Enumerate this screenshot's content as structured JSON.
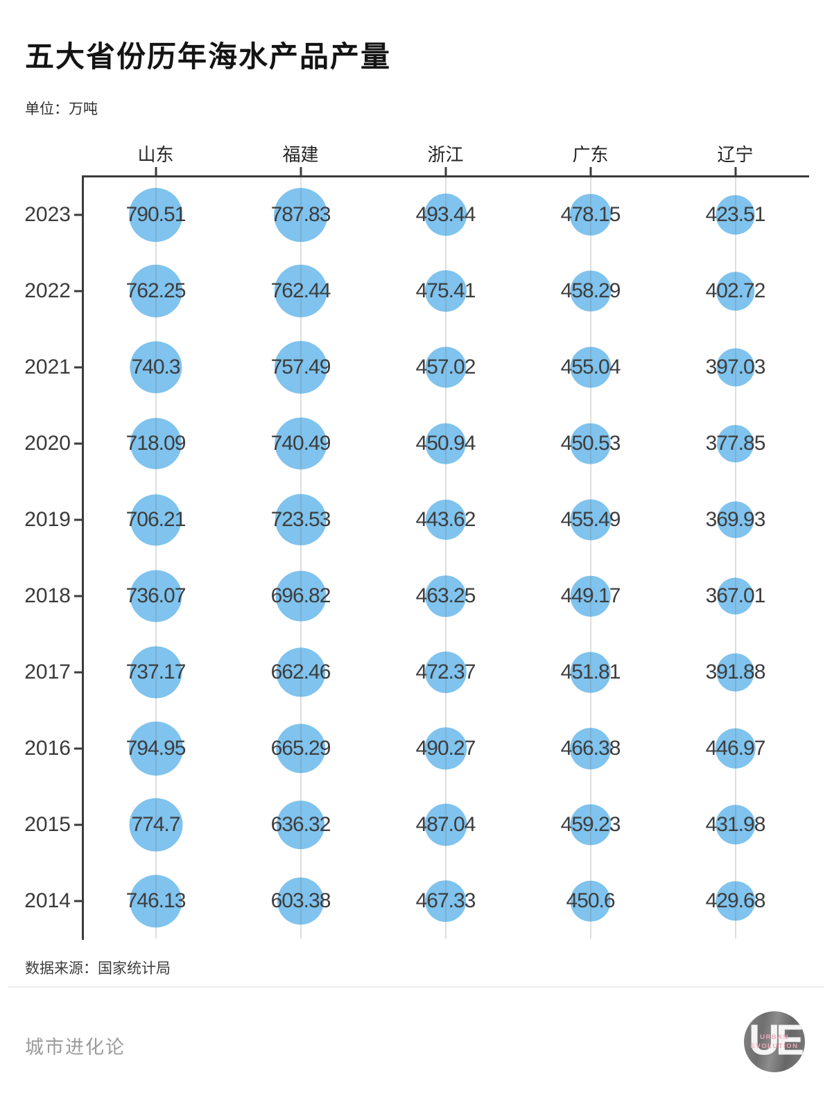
{
  "title": "五大省份历年海水产品产量",
  "unit_label": "单位：万吨",
  "source_label": "数据来源：国家统计局",
  "footer": {
    "brand": "城市进化论",
    "logo_monogram": "UE",
    "logo_text_line1": "URBAN",
    "logo_text_line2": "EVOLUTION"
  },
  "colors": {
    "bubble": "#7fc3ee",
    "axis": "#3b3b3b",
    "grid": "rgba(125,125,125,0.26)",
    "value_text": "#3d3d3d",
    "logo_pink": "#f3a9bd"
  },
  "chart_data": {
    "type": "scatter",
    "subtype": "bubble-matrix",
    "title": "五大省份历年海水产品产量",
    "unit": "万吨",
    "categories": [
      "山东",
      "福建",
      "浙江",
      "广东",
      "辽宁"
    ],
    "rows": [
      "2023",
      "2022",
      "2021",
      "2020",
      "2019",
      "2018",
      "2017",
      "2016",
      "2015",
      "2014"
    ],
    "series": [
      {
        "name": "山东",
        "values": [
          790.51,
          762.25,
          740.3,
          718.09,
          706.21,
          736.07,
          737.17,
          794.95,
          774.7,
          746.13
        ]
      },
      {
        "name": "福建",
        "values": [
          787.83,
          762.44,
          757.49,
          740.49,
          723.53,
          696.82,
          662.46,
          665.29,
          636.32,
          603.38
        ]
      },
      {
        "name": "浙江",
        "values": [
          493.44,
          475.41,
          457.02,
          450.94,
          443.62,
          463.25,
          472.37,
          490.27,
          487.04,
          467.33
        ]
      },
      {
        "name": "广东",
        "values": [
          478.15,
          458.29,
          455.04,
          450.53,
          455.49,
          449.17,
          451.81,
          466.38,
          459.23,
          450.6
        ]
      },
      {
        "name": "辽宁",
        "values": [
          423.51,
          402.72,
          397.03,
          377.85,
          369.93,
          367.01,
          391.88,
          446.97,
          431.98,
          429.68
        ]
      }
    ],
    "layout_hints": {
      "rows_axis": "years top-to-bottom on left axis",
      "columns_axis": "provinces on top axis",
      "size_encoding": "bubble area proportional to value",
      "value_labels": "shown centered on each bubble",
      "grid": "vertical column gridlines only",
      "legend": "none"
    }
  }
}
